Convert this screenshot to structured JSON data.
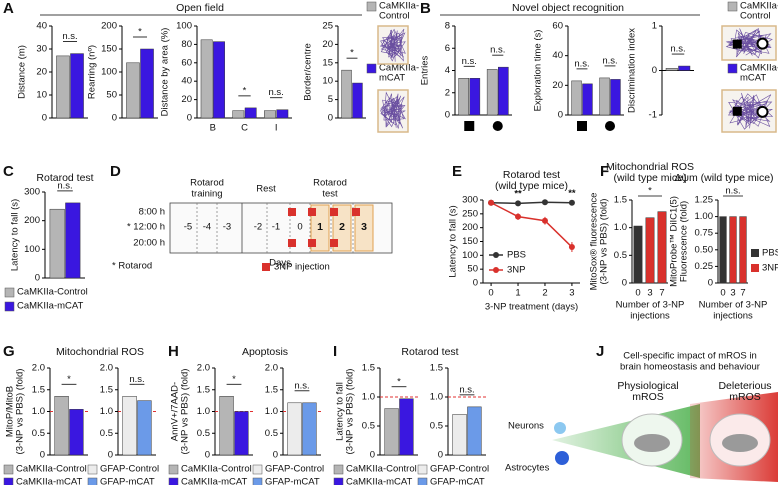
{
  "chart_data": [
    {
      "type": "bar",
      "ylabel": "Distance (m)",
      "categories": [
        null
      ],
      "series": [
        {
          "color": "#b5b5b5",
          "values": [
            27
          ]
        },
        {
          "color": "#3a17e0",
          "values": [
            28
          ]
        }
      ],
      "ylim": [
        0,
        40
      ],
      "yticks": [
        0,
        10,
        20,
        30,
        40
      ],
      "significance": [
        "n.s."
      ]
    },
    {
      "type": "bar",
      "ylabel": "Rearring (nº)",
      "categories": [
        null
      ],
      "series": [
        {
          "color": "#b5b5b5",
          "values": [
            120
          ]
        },
        {
          "color": "#3a17e0",
          "values": [
            150
          ]
        }
      ],
      "ylim": [
        0,
        200
      ],
      "yticks": [
        0,
        50,
        100,
        150,
        200
      ],
      "significance": [
        "*"
      ]
    },
    {
      "type": "bar",
      "ylabel": "Distance by area (%)",
      "categories": [
        "B",
        "C",
        "I"
      ],
      "series": [
        {
          "color": "#b5b5b5",
          "values": [
            85,
            8,
            8
          ]
        },
        {
          "color": "#3a17e0",
          "values": [
            83,
            11,
            9
          ]
        }
      ],
      "ylim": [
        0,
        100
      ],
      "yticks": [
        0,
        20,
        40,
        60,
        80,
        100
      ],
      "significance": [
        null,
        "*",
        "n.s."
      ]
    },
    {
      "type": "bar",
      "ylabel": "Border/centre",
      "categories": [
        null
      ],
      "series": [
        {
          "color": "#b5b5b5",
          "values": [
            13
          ]
        },
        {
          "color": "#3a17e0",
          "values": [
            9.5
          ]
        }
      ],
      "ylim": [
        0,
        25
      ],
      "yticks": [
        0,
        5,
        10,
        15,
        20,
        25
      ],
      "significance": [
        "*"
      ]
    },
    {
      "type": "bar",
      "ylabel": "Entries",
      "categories": [
        null,
        null
      ],
      "series": [
        {
          "color": "#b5b5b5",
          "values": [
            3.3,
            4.1
          ]
        },
        {
          "color": "#3a17e0",
          "values": [
            3.3,
            4.3
          ]
        }
      ],
      "ylim": [
        0,
        8
      ],
      "yticks": [
        0,
        2,
        4,
        6,
        8
      ],
      "significance": [
        "n.s.",
        "n.s."
      ]
    },
    {
      "type": "bar",
      "ylabel": "Exploration time (s)",
      "categories": [
        null,
        null
      ],
      "series": [
        {
          "color": "#b5b5b5",
          "values": [
            23,
            25
          ]
        },
        {
          "color": "#3a17e0",
          "values": [
            21,
            24
          ]
        }
      ],
      "ylim": [
        0,
        60
      ],
      "yticks": [
        0,
        20,
        40,
        60
      ],
      "significance": [
        "n.s.",
        "n.s."
      ]
    },
    {
      "type": "bar",
      "ylabel": "Discrimination index",
      "categories": [
        null
      ],
      "series": [
        {
          "color": "#b5b5b5",
          "values": [
            0.05
          ]
        },
        {
          "color": "#3a17e0",
          "values": [
            0.1
          ]
        }
      ],
      "ylim": [
        -1,
        1
      ],
      "yticks": [
        -1,
        0,
        1
      ],
      "significance": [
        "n.s."
      ]
    },
    {
      "type": "bar",
      "title": "Rotarod test",
      "ylabel": "Latency to fall (s)",
      "categories": [
        null
      ],
      "series": [
        {
          "color": "#b5b5b5",
          "values": [
            240
          ]
        },
        {
          "color": "#3a17e0",
          "values": [
            262
          ]
        }
      ],
      "ylim": [
        0,
        300
      ],
      "yticks": [
        0,
        100,
        200,
        300
      ],
      "significance": [
        "n.s."
      ]
    },
    {
      "type": "line",
      "title": [
        "Rotarod test",
        "(wild type mice)"
      ],
      "xlabel": "3-NP treatment (days)",
      "ylabel": "Latency to fall (s)",
      "x": [
        0,
        1,
        2,
        3
      ],
      "xlim": [
        -0.3,
        3.3
      ],
      "xticks": [
        0,
        1,
        2,
        3
      ],
      "ylim": [
        0,
        300
      ],
      "yticks": [
        0,
        50,
        100,
        150,
        200,
        250,
        300
      ],
      "series": [
        {
          "name": "PBS",
          "color": "#333333",
          "values": [
            290,
            288,
            292,
            290
          ],
          "errors": [
            4,
            5,
            4,
            5
          ]
        },
        {
          "name": "3NP",
          "color": "#d9312c",
          "values": [
            290,
            240,
            225,
            130
          ],
          "errors": [
            5,
            12,
            14,
            18
          ]
        }
      ],
      "significance": [
        null,
        "**",
        null,
        "**"
      ],
      "legend": "lower left"
    },
    {
      "type": "bar",
      "title": [
        "Mitochondrial ROS",
        "(wild type mice)"
      ],
      "ylabel": [
        "MitoSox® fluorescence",
        "(3-NP vs PBS) (fold)"
      ],
      "xlabel": [
        "Number of 3-NP",
        "injections"
      ],
      "categories": [
        "0",
        "3",
        "7"
      ],
      "series": [
        {
          "colors": [
            "#333333",
            "#d9312c",
            "#d9312c"
          ],
          "values": [
            1.03,
            1.18,
            1.29
          ]
        }
      ],
      "ylim": [
        0,
        1.5
      ],
      "yticks": [
        0,
        0.5,
        {
          "value": 1,
          "label": "1.0"
        },
        1.5
      ],
      "significance_span": "*"
    },
    {
      "type": "bar",
      "title": "Δψm (wild type mice)",
      "ylabel": [
        "MitoProbe™ DiIC1(5)",
        "Fluorescence (fold)"
      ],
      "xlabel": [
        "Number of 3-NP",
        "injections"
      ],
      "categories": [
        "0",
        "3",
        "7"
      ],
      "series": [
        {
          "colors": [
            "#333333",
            "#d9312c",
            "#d9312c"
          ],
          "values": [
            1.0,
            1.0,
            1.0
          ]
        }
      ],
      "ylim": [
        0,
        1.25
      ],
      "yticks": [
        0,
        0.25,
        {
          "value": 0.5,
          "label": "0.50"
        },
        0.75,
        {
          "value": 1,
          "label": "1.00"
        },
        1.25
      ],
      "significance_span": "n.s.",
      "legend": [
        {
          "name": "PBS",
          "color": "#333333"
        },
        {
          "name": "3NP",
          "color": "#d9312c"
        }
      ]
    },
    {
      "type": "bar",
      "ylabel": [
        "MitoP/MitoB",
        "(3-NP vs PBS) (fold)"
      ],
      "categories": [
        null
      ],
      "series": [
        {
          "color": "#b5b5b5",
          "values": [
            1.35
          ]
        },
        {
          "color": "#3a17e0",
          "values": [
            1.05
          ]
        }
      ],
      "ylim": [
        0,
        2
      ],
      "yticks": [
        0,
        0.5,
        {
          "value": 1,
          "label": "1.0"
        },
        1.5,
        {
          "value": 2,
          "label": "2.0"
        }
      ],
      "significance": [
        "*"
      ],
      "reference_line": 1
    },
    {
      "type": "bar",
      "categories": [
        null
      ],
      "series": [
        {
          "color": "#ececec",
          "values": [
            1.35
          ]
        },
        {
          "color": "#6b9ae8",
          "values": [
            1.25
          ]
        }
      ],
      "ylim": [
        0,
        2
      ],
      "yticks": [
        0,
        0.5,
        {
          "value": 1,
          "label": "1.0"
        },
        1.5,
        {
          "value": 2,
          "label": "2.0"
        }
      ],
      "significance": [
        "n.s."
      ],
      "reference_line": 1
    },
    {
      "type": "bar",
      "ylabel": [
        "AnnV+/7AAD-",
        "(3-NP vs PBS) (fold)"
      ],
      "categories": [
        null
      ],
      "series": [
        {
          "color": "#b5b5b5",
          "values": [
            1.35
          ]
        },
        {
          "color": "#3a17e0",
          "values": [
            1.0
          ]
        }
      ],
      "ylim": [
        0,
        2
      ],
      "yticks": [
        0,
        0.5,
        {
          "value": 1,
          "label": "1.0"
        },
        1.5,
        {
          "value": 2,
          "label": "2.0"
        }
      ],
      "significance": [
        "*"
      ],
      "reference_line": 1
    },
    {
      "type": "bar",
      "categories": [
        null
      ],
      "series": [
        {
          "color": "#ececec",
          "values": [
            1.2
          ]
        },
        {
          "color": "#6b9ae8",
          "values": [
            1.2
          ]
        }
      ],
      "ylim": [
        0,
        2
      ],
      "yticks": [
        0,
        0.5,
        {
          "value": 1,
          "label": "1.0"
        },
        1.5,
        {
          "value": 2,
          "label": "2.0"
        }
      ],
      "significance": [
        "n.s."
      ],
      "reference_line": 1
    },
    {
      "type": "bar",
      "ylabel": [
        "Latency to fall",
        "(3-NP vs PBS) (fold)"
      ],
      "categories": [
        null
      ],
      "series": [
        {
          "color": "#b5b5b5",
          "values": [
            0.8
          ]
        },
        {
          "color": "#3a17e0",
          "values": [
            0.97
          ]
        }
      ],
      "ylim": [
        0,
        1.5
      ],
      "yticks": [
        0,
        0.5,
        {
          "value": 1,
          "label": "1.0"
        },
        1.5
      ],
      "significance": [
        "*"
      ],
      "reference_line": 1
    },
    {
      "type": "bar",
      "categories": [
        null
      ],
      "series": [
        {
          "color": "#ececec",
          "values": [
            0.7
          ]
        },
        {
          "color": "#6b9ae8",
          "values": [
            0.83
          ]
        }
      ],
      "ylim": [
        0,
        1.5
      ],
      "yticks": [
        0,
        0.5,
        {
          "value": 1,
          "label": "1.0"
        },
        1.5
      ],
      "significance": [
        "n.s."
      ],
      "reference_line": 1
    }
  ],
  "panels": [
    {
      "letter": "A",
      "title": "Open field",
      "legend": [
        {
          "name": [
            "CaMKIIa-",
            "Control"
          ],
          "color": "#b5b5b5"
        },
        {
          "name": [
            "CaMKIIa-",
            "mCAT"
          ],
          "color": "#3a17e0"
        }
      ]
    },
    {
      "letter": "B",
      "title": "Novel object recognition",
      "legend": [
        {
          "name": [
            "CaMKIIa-",
            "Control"
          ],
          "color": "#b5b5b5"
        },
        {
          "name": [
            "CaMKIIa-",
            "mCAT"
          ],
          "color": "#3a17e0"
        }
      ]
    },
    {
      "letter": "C",
      "legend": [
        {
          "name": "CaMKIIa-Control",
          "color": "#b5b5b5"
        },
        {
          "name": "CaMKIIa-mCAT",
          "color": "#3a17e0"
        }
      ]
    },
    {
      "letter": "D",
      "headers": [
        [
          "Rotarod",
          "training"
        ],
        "Rest",
        [
          "Rotarod",
          "test"
        ]
      ],
      "times": [
        "8:00 h",
        "* 12:00 h",
        "20:00 h"
      ],
      "days": [
        -5,
        -4,
        -3,
        -2,
        -1,
        0,
        1,
        2,
        3
      ],
      "xlabel": "Days",
      "footnote": "* Rotarod",
      "injection_legend": "3NP injection"
    },
    {
      "letter": "E"
    },
    {
      "letter": "F"
    },
    {
      "letter": "G",
      "title": "Mitochondrial ROS",
      "legend": [
        {
          "name": "CaMKIIa-Control",
          "color": "#b5b5b5"
        },
        {
          "name": "GFAP-Control",
          "color": "#ececec"
        },
        {
          "name": "CaMKIIa-mCAT",
          "color": "#3a17e0"
        },
        {
          "name": "GFAP-mCAT",
          "color": "#6b9ae8"
        }
      ]
    },
    {
      "letter": "H",
      "title": "Apoptosis",
      "legend": [
        {
          "name": "CaMKIIa-Control",
          "color": "#b5b5b5"
        },
        {
          "name": "GFAP-Control",
          "color": "#ececec"
        },
        {
          "name": "CaMKIIa-mCAT",
          "color": "#3a17e0"
        },
        {
          "name": "GFAP-mCAT",
          "color": "#6b9ae8"
        }
      ]
    },
    {
      "letter": "I",
      "title": "Rotarod test",
      "legend": [
        {
          "name": "CaMKIIa-Control",
          "color": "#b5b5b5"
        },
        {
          "name": "GFAP-Control",
          "color": "#ececec"
        },
        {
          "name": "CaMKIIa-mCAT",
          "color": "#3a17e0"
        },
        {
          "name": "GFAP-mCAT",
          "color": "#6b9ae8"
        }
      ]
    },
    {
      "letter": "J",
      "title": [
        "Cell-specific impact of mROS in",
        "brain homeostasis and behaviour"
      ],
      "beams": [
        {
          "label": [
            "Physiological",
            "mROS"
          ],
          "color": "#3aa83a"
        },
        {
          "label": [
            "Deleterious",
            "mROS"
          ],
          "color": "#d9312c"
        }
      ],
      "cells": [
        "Neurons",
        "Astrocytes"
      ]
    }
  ]
}
